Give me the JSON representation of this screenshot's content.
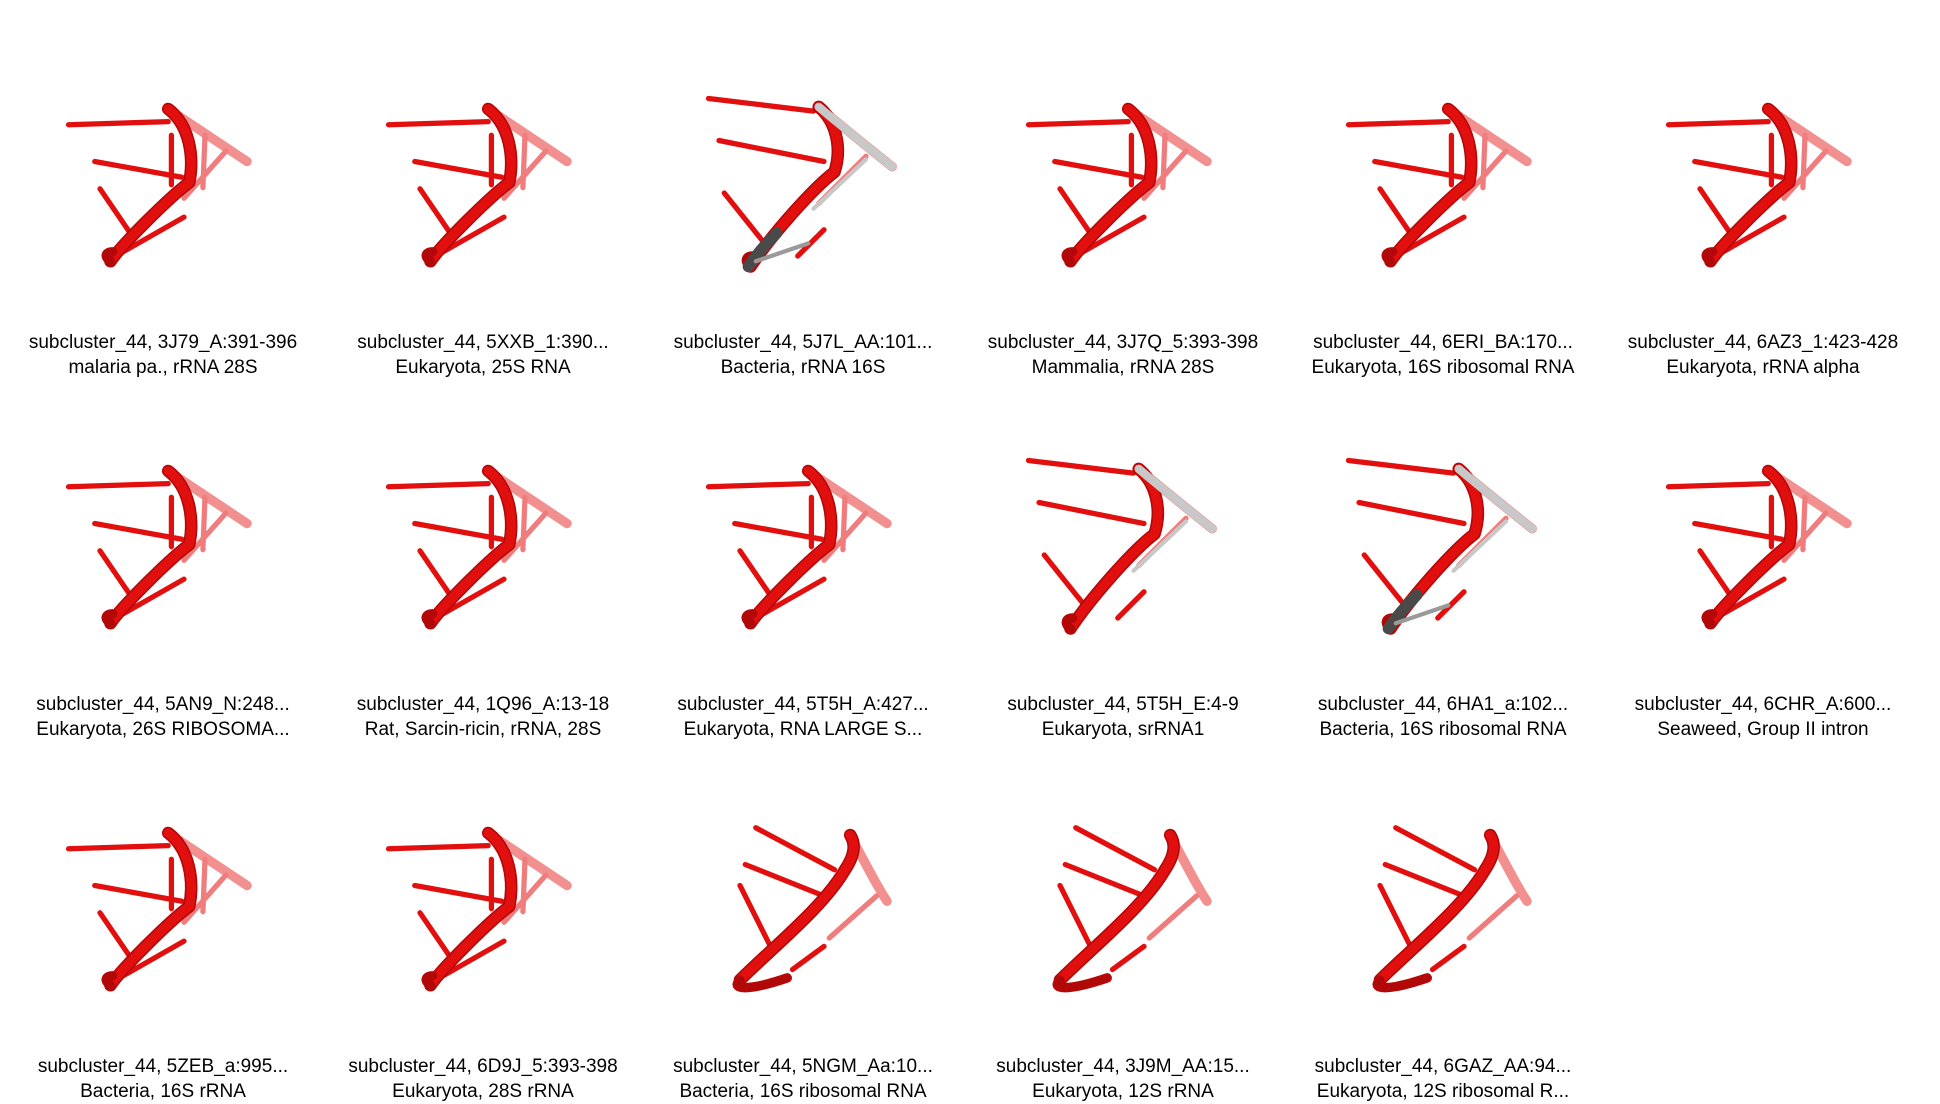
{
  "palette": {
    "backbone": "#e20f0f",
    "backbone_dark": "#b20808",
    "faded": "#f07d7d",
    "unresolved_light": "#c8c8c8",
    "unresolved_dark": "#4a4a4a",
    "background": "#ffffff",
    "caption_text": "#000000"
  },
  "structures": [
    {
      "label": "subcluster_44, 3J79_A:391-396",
      "taxon": "malaria pa., rRNA 28S",
      "variant": "a",
      "gray": "none"
    },
    {
      "label": "subcluster_44, 5XXB_1:390...",
      "taxon": "Eukaryota, 25S RNA",
      "variant": "a",
      "gray": "none"
    },
    {
      "label": "subcluster_44, 5J7L_AA:101...",
      "taxon": "Bacteria, rRNA 16S",
      "variant": "b",
      "gray": "both"
    },
    {
      "label": "subcluster_44, 3J7Q_5:393-398",
      "taxon": "Mammalia, rRNA 28S",
      "variant": "a",
      "gray": "none"
    },
    {
      "label": "subcluster_44, 6ERI_BA:170...",
      "taxon": "Eukaryota, 16S ribosomal RNA",
      "variant": "a",
      "gray": "none"
    },
    {
      "label": "subcluster_44, 6AZ3_1:423-428",
      "taxon": "Eukaryota, rRNA alpha",
      "variant": "a",
      "gray": "none"
    },
    {
      "label": "subcluster_44, 5AN9_N:248...",
      "taxon": "Eukaryota, 26S RIBOSOMA...",
      "variant": "a",
      "gray": "none"
    },
    {
      "label": "subcluster_44, 1Q96_A:13-18",
      "taxon": "Rat, Sarcin-ricin, rRNA, 28S",
      "variant": "a",
      "gray": "none"
    },
    {
      "label": "subcluster_44, 5T5H_A:427...",
      "taxon": "Eukaryota, RNA LARGE S...",
      "variant": "a",
      "gray": "none"
    },
    {
      "label": "subcluster_44, 5T5H_E:4-9",
      "taxon": "Eukaryota, srRNA1",
      "variant": "b",
      "gray": "light"
    },
    {
      "label": "subcluster_44, 6HA1_a:102...",
      "taxon": "Bacteria, 16S ribosomal RNA",
      "variant": "b",
      "gray": "both"
    },
    {
      "label": "subcluster_44, 6CHR_A:600...",
      "taxon": "Seaweed, Group II intron",
      "variant": "a",
      "gray": "none"
    },
    {
      "label": "subcluster_44, 5ZEB_a:995...",
      "taxon": "Bacteria, 16S rRNA",
      "variant": "a",
      "gray": "none"
    },
    {
      "label": "subcluster_44, 6D9J_5:393-398",
      "taxon": "Eukaryota, 28S rRNA",
      "variant": "a",
      "gray": "none"
    },
    {
      "label": "subcluster_44, 5NGM_Aa:10...",
      "taxon": "Bacteria, 16S ribosomal RNA",
      "variant": "c",
      "gray": "none"
    },
    {
      "label": "subcluster_44, 3J9M_AA:15...",
      "taxon": "Eukaryota, 12S rRNA",
      "variant": "c",
      "gray": "none"
    },
    {
      "label": "subcluster_44, 6GAZ_AA:94...",
      "taxon": "Eukaryota, 12S ribosomal R...",
      "variant": "c",
      "gray": "none"
    }
  ]
}
